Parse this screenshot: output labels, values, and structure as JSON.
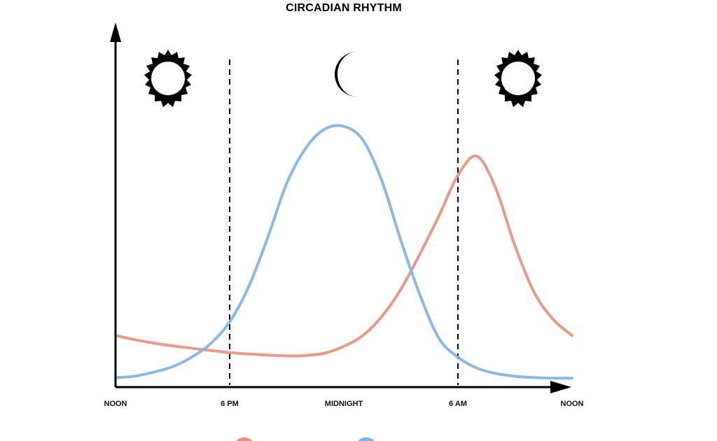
{
  "chart_data": {
    "type": "line",
    "title": "CIRCADIAN RHYTHM",
    "x_ticks": [
      "NOON",
      "6 PM",
      "MIDNIGHT",
      "6 AM",
      "NOON"
    ],
    "x_tick_positions_hours": [
      0,
      6,
      12,
      18,
      24
    ],
    "xlim": [
      0,
      24
    ],
    "ylim": [
      0,
      1
    ],
    "grid": false,
    "period_markers_hours": [
      6,
      18
    ],
    "period_icons": [
      "sun-icon",
      "moon-icon",
      "sun-icon"
    ],
    "series": [
      {
        "color": "#e8907f",
        "x": [
          0,
          1,
          2,
          3,
          4,
          5,
          6,
          7,
          8,
          9,
          10,
          11,
          12,
          13,
          14,
          15,
          16,
          17,
          18,
          19,
          20,
          21,
          22,
          23,
          24
        ],
        "y": [
          0.19,
          0.175,
          0.162,
          0.152,
          0.143,
          0.135,
          0.127,
          0.122,
          0.118,
          0.115,
          0.116,
          0.125,
          0.15,
          0.19,
          0.26,
          0.36,
          0.49,
          0.63,
          0.78,
          0.85,
          0.73,
          0.52,
          0.35,
          0.25,
          0.19
        ]
      },
      {
        "color": "#7fb2e8",
        "x": [
          0,
          1,
          2,
          3,
          4,
          5,
          6,
          7,
          8,
          9,
          10,
          11,
          12,
          13,
          14,
          15,
          16,
          17,
          18,
          19,
          20,
          21,
          22,
          23,
          24
        ],
        "y": [
          0.035,
          0.04,
          0.055,
          0.075,
          0.11,
          0.16,
          0.24,
          0.37,
          0.55,
          0.75,
          0.88,
          0.95,
          0.96,
          0.91,
          0.76,
          0.54,
          0.34,
          0.18,
          0.11,
          0.07,
          0.05,
          0.04,
          0.035,
          0.033,
          0.033
        ]
      }
    ],
    "legend_placement": "bottom"
  }
}
